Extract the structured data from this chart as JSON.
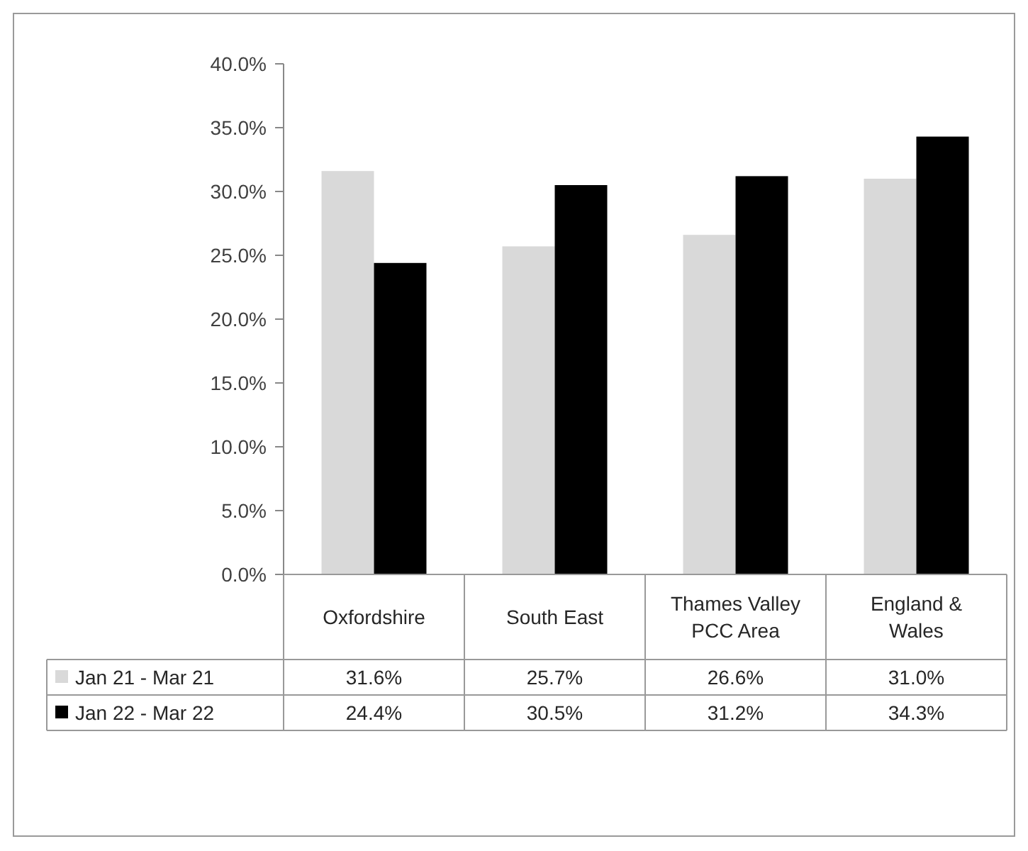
{
  "chart_data": {
    "type": "bar",
    "categories": [
      "Oxfordshire",
      "South East",
      "Thames Valley PCC Area",
      "England & Wales"
    ],
    "series": [
      {
        "name": "Jan 21 - Mar 21",
        "color": "#d9d9d9",
        "values": [
          31.6,
          25.7,
          26.6,
          31.0
        ]
      },
      {
        "name": "Jan 22 - Mar 22",
        "color": "#000000",
        "values": [
          24.4,
          30.5,
          31.2,
          34.3
        ]
      }
    ],
    "ylim": [
      0,
      40
    ],
    "yticks": [
      {
        "value": 0,
        "label": "0.0%"
      },
      {
        "value": 5,
        "label": "5.0%"
      },
      {
        "value": 10,
        "label": "10.0%"
      },
      {
        "value": 15,
        "label": "15.0%"
      },
      {
        "value": 20,
        "label": "20.0%"
      },
      {
        "value": 25,
        "label": "25.0%"
      },
      {
        "value": 30,
        "label": "30.0%"
      },
      {
        "value": 35,
        "label": "35.0%"
      },
      {
        "value": 40,
        "label": "40.0%"
      }
    ],
    "value_labels": [
      [
        "31.6%",
        "25.7%",
        "26.6%",
        "31.0%"
      ],
      [
        "24.4%",
        "30.5%",
        "31.2%",
        "34.3%"
      ]
    ],
    "legend": "bottom"
  }
}
